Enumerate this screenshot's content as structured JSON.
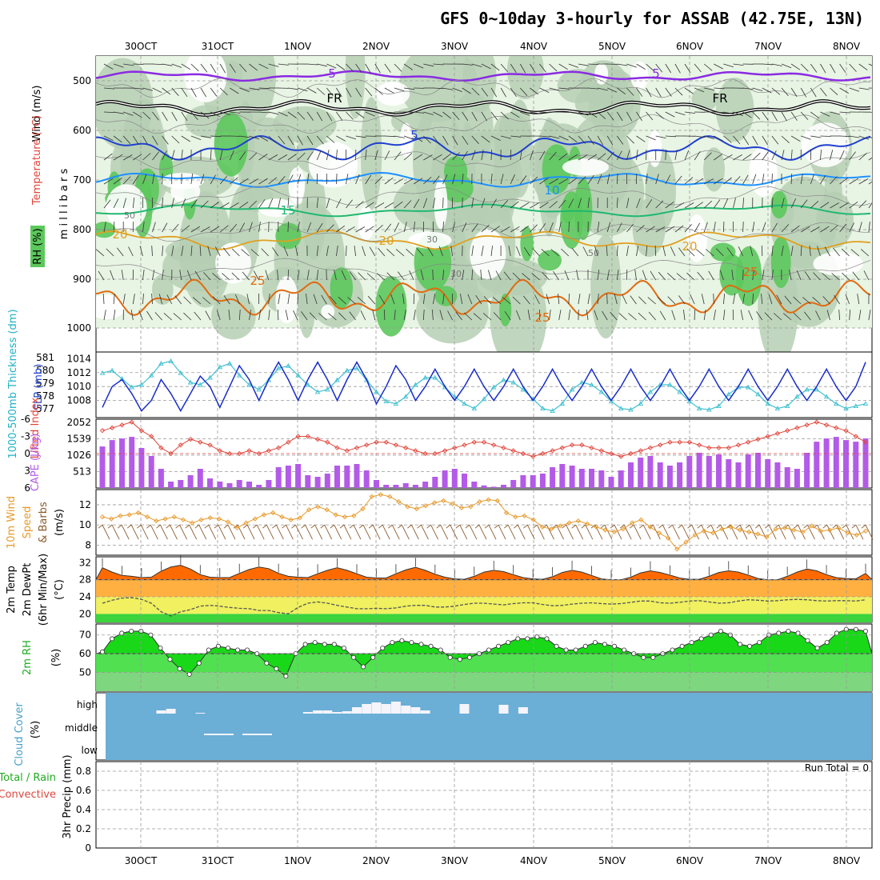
{
  "title": "GFS 0~10day 3-hourly for ASSAB (42.75E, 13N)",
  "days": [
    "30OCT",
    "31OCT",
    "1NOV",
    "2NOV",
    "3NOV",
    "4NOV",
    "5NOV",
    "6NOV",
    "7NOV",
    "8NOV"
  ],
  "colors": {
    "grid": "#999999",
    "rh_light": "#e8f4e4",
    "rh_mid": "#b6cfb4",
    "rh_green": "#5cc85c",
    "cloud": "#6baed6"
  },
  "panels": {
    "upper": {
      "label_wind": "Wind (m/s)",
      "label_temp": "Temperature (°C)",
      "label_rh": "RH (%)",
      "label_mb": "m i l l i b a r s",
      "pressure_ticks": [
        "500",
        "600",
        "700",
        "800",
        "900",
        "1000"
      ],
      "contour_labels": [
        "5",
        "5",
        "FR",
        "FR",
        "5",
        "10",
        "15",
        "20",
        "20",
        "20",
        "25",
        "25",
        "25",
        "30",
        "30",
        "50",
        "50"
      ]
    },
    "slp": {
      "label_thick": "1000-500mb Thickness (dm)",
      "label_slp": "SLP (mb)",
      "thick_ticks": [
        "581",
        "580",
        "579",
        "578",
        "577"
      ],
      "slp_ticks": [
        "1014",
        "1012",
        "1010",
        "1008"
      ]
    },
    "cape": {
      "label_li": "Lifted Index",
      "label_cape": "CAPE (J/kg)",
      "li_ticks": [
        "-6",
        "-3",
        "0",
        "3",
        "6"
      ],
      "cape_ticks": [
        "2052",
        "1539",
        "1026",
        "513"
      ]
    },
    "wind10": {
      "label_main": "10m Wind",
      "label_speed": "Speed",
      "label_barbs": "& Barbs",
      "unit": "(m/s)",
      "ticks": [
        "12",
        "10",
        "8"
      ]
    },
    "temp2m": {
      "label_temp": "2m Temp",
      "label_dew": "2m DewPt",
      "label_minmax": "(6hr Min/Max)",
      "unit": "(°C)",
      "ticks": [
        "32",
        "28",
        "24",
        "20"
      ]
    },
    "rh2m": {
      "label": "2m RH",
      "unit": "(%)",
      "ticks": [
        "70",
        "60",
        "50"
      ]
    },
    "cloud": {
      "label": "Cloud Cover",
      "unit": "(%)",
      "levels": [
        "high",
        "middle",
        "low"
      ]
    },
    "precip": {
      "label_total": "Total / Rain",
      "label_conv": "Convective",
      "label_precip": "3hr Precip (mm)",
      "run_total": "Run Total = 0",
      "ticks": [
        "0.8",
        "0.6",
        "0.4",
        "0.2",
        "0"
      ]
    }
  },
  "chart_data": [
    {
      "type": "line",
      "name": "SLP",
      "unit": "mb",
      "ylim": [
        1006,
        1014.5
      ],
      "values": [
        1007,
        1010,
        1011,
        1009,
        1006.5,
        1008,
        1011,
        1009,
        1006.5,
        1009,
        1011.5,
        1010,
        1007,
        1010,
        1013,
        1011,
        1008,
        1011,
        1013.5,
        1011,
        1008,
        1011,
        1013.5,
        1011,
        1008,
        1011,
        1013.5,
        1011,
        1007.5,
        1010,
        1013,
        1011,
        1008,
        1010,
        1012.5,
        1010,
        1008,
        1010,
        1012.5,
        1010,
        1008,
        1010,
        1012.5,
        1010,
        1008,
        1010,
        1012.5,
        1010,
        1008,
        1010,
        1012.5,
        1010,
        1008,
        1010,
        1012.5,
        1010,
        1008,
        1010,
        1012.5,
        1010,
        1008,
        1010,
        1012.5,
        1010,
        1008,
        1010,
        1012.5,
        1010,
        1008,
        1010,
        1012.5,
        1010,
        1008,
        1010,
        1012.5,
        1010,
        1008,
        1010,
        1013.5
      ]
    },
    {
      "type": "line",
      "name": "1000-500mb Thickness",
      "unit": "dm",
      "ylim": [
        576.5,
        581.5
      ],
      "values": [
        580,
        580.2,
        579.5,
        578.8,
        579,
        579.8,
        580.8,
        581,
        580,
        579.2,
        579,
        579.6,
        580.5,
        580.8,
        579.8,
        579,
        578.6,
        579.4,
        580.4,
        580.6,
        579.8,
        579,
        578.4,
        578.6,
        579.4,
        580.2,
        580.4,
        579.4,
        578.4,
        577.6,
        577.4,
        578,
        579,
        579.6,
        579.6,
        578.8,
        578,
        577.4,
        577,
        577.8,
        578.8,
        579.4,
        579.2,
        578.6,
        577.8,
        577,
        576.8,
        577.4,
        578.6,
        579.2,
        579,
        578.4,
        577.6,
        577,
        576.9,
        577.4,
        578.4,
        579,
        579,
        578.4,
        577.6,
        577,
        576.9,
        577.2,
        578.2,
        578.8,
        578.8,
        578.2,
        577.4,
        577,
        577.2,
        578,
        578.6,
        578.6,
        578,
        577.4,
        577,
        577.2,
        577.4
      ]
    },
    {
      "type": "line",
      "name": "Lifted Index",
      "ylim": [
        6,
        -6
      ],
      "values": [
        -4,
        -4.5,
        -5,
        -5.5,
        -4,
        -3,
        -1,
        0,
        -1.5,
        -2.5,
        -2,
        -1.5,
        -0.5,
        0,
        0,
        -0.5,
        0,
        -0.5,
        -1,
        -2,
        -3,
        -3,
        -2.5,
        -2,
        -1,
        -0.5,
        -1,
        -1.5,
        -2,
        -2,
        -1.5,
        -1,
        -0.5,
        0,
        0,
        -0.5,
        -1,
        -1.5,
        -2,
        -2,
        -1.5,
        -1,
        -0.5,
        0,
        0.5,
        0,
        -0.5,
        -1,
        -1.5,
        -1.5,
        -1,
        -0.5,
        0,
        0.5,
        0,
        -0.5,
        -1,
        -1.5,
        -2,
        -2,
        -2,
        -1.5,
        -1,
        -1,
        -1,
        -1.5,
        -2,
        -2.5,
        -3,
        -3.5,
        -4,
        -4.5,
        -5,
        -5.5,
        -5,
        -4.5,
        -4,
        -3,
        -2
      ]
    },
    {
      "type": "bar",
      "name": "CAPE",
      "unit": "J/kg",
      "ylim": [
        0,
        2052
      ],
      "values": [
        1300,
        1500,
        1550,
        1600,
        1250,
        1000,
        600,
        200,
        250,
        400,
        600,
        300,
        200,
        150,
        250,
        200,
        100,
        250,
        650,
        700,
        750,
        400,
        350,
        450,
        700,
        700,
        750,
        550,
        250,
        100,
        100,
        150,
        100,
        200,
        350,
        550,
        600,
        450,
        200,
        80,
        40,
        100,
        250,
        400,
        400,
        450,
        650,
        750,
        700,
        600,
        600,
        550,
        350,
        550,
        800,
        950,
        1000,
        800,
        700,
        800,
        1000,
        1100,
        1000,
        1050,
        900,
        800,
        1050,
        1100,
        900,
        800,
        650,
        600,
        1100,
        1450,
        1550,
        1600,
        1500,
        1450,
        1550
      ]
    },
    {
      "type": "line",
      "name": "10m Wind Speed",
      "unit": "m/s",
      "ylim": [
        7,
        13.5
      ],
      "values": [
        10.8,
        10.6,
        10.9,
        11,
        11.2,
        10.8,
        10.4,
        10.6,
        10.8,
        10.5,
        10.2,
        10.5,
        10.7,
        10.6,
        10.3,
        9.7,
        10.2,
        10.6,
        11,
        11.2,
        10.8,
        10.5,
        10.7,
        11.5,
        11.8,
        11.5,
        11,
        10.8,
        10.9,
        11.6,
        12.8,
        13,
        12.8,
        12.3,
        11.8,
        11.6,
        11.9,
        12.2,
        12.4,
        12.1,
        11.7,
        11.8,
        12.3,
        12.5,
        12.4,
        11.2,
        10.8,
        10.9,
        10.5,
        9.8,
        9.6,
        9.9,
        10.2,
        10.4,
        10.1,
        9.8,
        9.5,
        9.3,
        9.6,
        10.2,
        10.5,
        9.8,
        9.2,
        8.7,
        7.6,
        8.3,
        9,
        9.4,
        9.2,
        9.6,
        9.8,
        9.5,
        9.3,
        9.1,
        8.8,
        9.6,
        9.7,
        9.5,
        9.3,
        9.9,
        9.4,
        9.5,
        9.7,
        9.2,
        9,
        9.4
      ]
    },
    {
      "type": "area",
      "name": "2m Temp",
      "unit": "°C",
      "ylim": [
        18,
        33
      ],
      "values": [
        30.8,
        29.8,
        29,
        28.8,
        28.5,
        28.6,
        30,
        31,
        31.4,
        30.5,
        29.2,
        28.6,
        28.5,
        28.5,
        29.5,
        30.4,
        31,
        30.6,
        29.5,
        28.8,
        28.6,
        28.5,
        29.4,
        30.2,
        30.8,
        30.2,
        29.4,
        28.6,
        28.4,
        28.4,
        29.4,
        30.3,
        30.9,
        30.2,
        29.3,
        28.6,
        28.2,
        28.1,
        28.8,
        29.8,
        30.2,
        29.9,
        29.2,
        28.5,
        28.2,
        28.1,
        28.7,
        29.7,
        30.2,
        29.8,
        29,
        28.2,
        28,
        28,
        28.6,
        29.6,
        30.1,
        29.7,
        29.1,
        28.4,
        28.1,
        28.1,
        28.8,
        29.7,
        30.1,
        29.8,
        29.1,
        28.3,
        28,
        28,
        28.8,
        29.8,
        30.5,
        30.1,
        29.2,
        28.5,
        28.3,
        28.2,
        29.5
      ]
    },
    {
      "type": "line",
      "name": "2m DewPt",
      "unit": "°C",
      "ylim": [
        18,
        33
      ],
      "values": [
        22.5,
        23.2,
        23.7,
        23.8,
        23.4,
        22.5,
        20.5,
        19.5,
        20.5,
        21,
        21.8,
        22,
        21.8,
        21.5,
        21.3,
        21.2,
        20.8,
        20.8,
        20.3,
        20,
        21.5,
        22.5,
        22.8,
        22.5,
        22,
        21.6,
        21.2,
        21.2,
        21.3,
        21.2,
        21.4,
        21.8,
        22,
        22,
        21.6,
        21.6,
        21.8,
        22.2,
        22.5,
        22.5,
        22.3,
        22.1,
        22.4,
        22.6,
        22.6,
        22.2,
        21.9,
        22,
        22.3,
        22.5,
        22.6,
        22.4,
        22.3,
        22.4,
        22.7,
        23,
        23,
        22.6,
        22.5,
        22.7,
        23,
        23.1,
        22.8,
        22.5,
        22.6,
        23,
        23.3,
        23.2,
        23,
        23.1,
        23.3,
        23.4,
        23.3,
        23.1,
        23,
        23.1,
        23.1,
        23,
        23.3
      ]
    },
    {
      "type": "area",
      "name": "2m RH",
      "unit": "%",
      "ylim": [
        40,
        75
      ],
      "values": [
        61,
        68,
        71,
        72,
        72,
        70,
        63,
        57,
        52,
        49,
        55,
        62,
        64,
        63,
        62,
        62,
        60,
        55,
        52,
        48,
        60,
        65,
        66,
        65,
        65,
        63,
        58,
        53,
        58,
        63,
        66,
        67,
        66,
        65,
        64,
        62,
        58,
        57,
        58,
        60,
        62,
        64,
        66,
        68,
        68,
        69,
        68,
        64,
        62,
        62,
        64,
        66,
        65,
        64,
        62,
        60,
        58,
        58,
        60,
        62,
        64,
        66,
        68,
        70,
        72,
        70,
        65,
        64,
        66,
        70,
        71,
        72,
        71,
        67,
        63,
        66,
        71,
        73,
        73,
        72
      ]
    },
    {
      "type": "bar",
      "name": "High Cloud Cover",
      "unit": "%",
      "values": [
        0,
        0,
        0,
        0,
        0,
        0,
        20,
        30,
        0,
        0,
        5,
        0,
        0,
        0,
        0,
        0,
        0,
        0,
        0,
        0,
        0,
        10,
        20,
        20,
        10,
        15,
        40,
        60,
        70,
        60,
        75,
        50,
        40,
        20,
        0,
        0,
        0,
        60,
        0,
        0,
        0,
        55,
        0,
        40,
        0,
        0,
        0,
        0,
        0,
        0,
        0,
        0,
        0,
        0,
        0,
        0,
        0,
        0,
        0,
        0,
        0,
        0,
        0,
        0,
        0,
        0,
        0,
        0,
        0,
        0,
        0,
        0,
        0,
        0,
        0,
        0,
        0,
        0,
        0
      ]
    },
    {
      "type": "bar",
      "name": "3hr Precip",
      "unit": "mm",
      "ylim": [
        0,
        0.9
      ],
      "values": []
    }
  ]
}
